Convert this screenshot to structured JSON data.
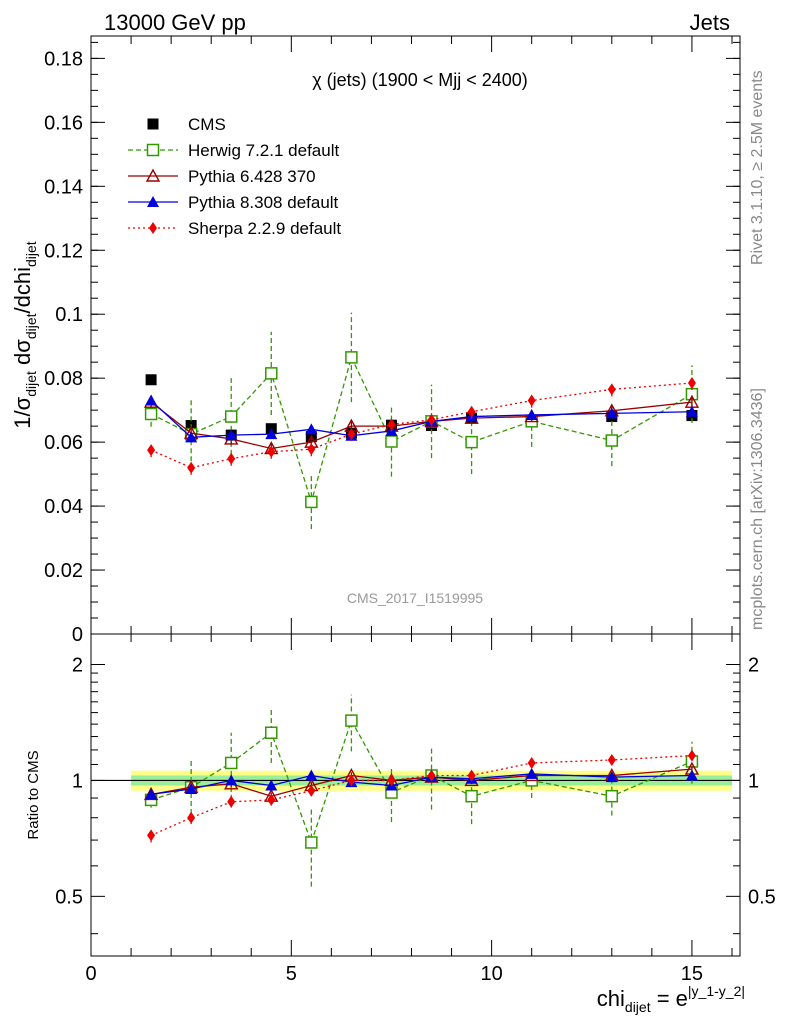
{
  "header": {
    "left": "13000 GeV pp",
    "right": "Jets"
  },
  "side_text": {
    "rivet": "Rivet 3.1.10, ≥ 2.5M events",
    "mcplots": "mcplots.cern.ch [arXiv:1306.3436]"
  },
  "chart_data": [
    {
      "type": "scatter",
      "title": "χ (jets) (1900 < Mjj < 2400)",
      "watermark": "CMS_2017_I1519995",
      "ylabel_parts": [
        "1/σ",
        "dijet",
        " dσ",
        "dijet",
        "/dchi",
        "dijet"
      ],
      "xlim": [
        0,
        16.2
      ],
      "ylim": [
        0,
        0.187
      ],
      "yticks": [
        0,
        0.02,
        0.04,
        0.06,
        0.08,
        0.1,
        0.12,
        0.14,
        0.16,
        0.18
      ],
      "ytick_labels": [
        "0",
        "0.02",
        "0.04",
        "0.06",
        "0.08",
        "0.1",
        "0.12",
        "0.14",
        "0.16",
        "0.18"
      ],
      "x": [
        1.5,
        2.5,
        3.5,
        4.5,
        5.5,
        6.5,
        7.5,
        8.5,
        9.5,
        11,
        13,
        15
      ],
      "series": [
        {
          "name": "CMS",
          "color": "#000000",
          "marker": "square",
          "line": "none",
          "values": [
            0.0795,
            0.0652,
            0.0622,
            0.0642,
            0.0617,
            0.0628,
            0.0653,
            0.0652,
            0.0675,
            0.0663,
            0.068,
            0.0683
          ]
        },
        {
          "name": "Herwig 7.2.1 default",
          "color": "#339900",
          "marker": "open-square",
          "line": "dashed",
          "values": [
            0.0688,
            0.0625,
            0.068,
            0.0815,
            0.0413,
            0.0865,
            0.0602,
            0.0665,
            0.06,
            0.0665,
            0.0605,
            0.075
          ],
          "errors": [
            0.004,
            0.011,
            0.012,
            0.013,
            0.0085,
            0.014,
            0.011,
            0.0115,
            0.01,
            0.008,
            0.008,
            0.009
          ]
        },
        {
          "name": "Pythia 6.428 370",
          "color": "#990000",
          "marker": "open-triangle",
          "line": "solid",
          "values": [
            0.0725,
            0.0628,
            0.061,
            0.058,
            0.06,
            0.065,
            0.065,
            0.0665,
            0.0675,
            0.068,
            0.0698,
            0.0725
          ],
          "errors": [
            0.0015,
            0.0015,
            0.0015,
            0.0015,
            0.0015,
            0.0015,
            0.0015,
            0.0015,
            0.0015,
            0.0015,
            0.0015,
            0.0015
          ]
        },
        {
          "name": "Pythia 8.308 default",
          "color": "#0000dd",
          "marker": "triangle",
          "line": "solid",
          "values": [
            0.073,
            0.0615,
            0.0622,
            0.0625,
            0.064,
            0.062,
            0.0635,
            0.0665,
            0.068,
            0.0685,
            0.069,
            0.0695
          ],
          "errors": [
            0.0012,
            0.0012,
            0.0012,
            0.0012,
            0.0012,
            0.0012,
            0.0012,
            0.0012,
            0.0012,
            0.0012,
            0.0012,
            0.0012
          ]
        },
        {
          "name": "Sherpa 2.2.9 default",
          "color": "#ee0000",
          "marker": "diamond",
          "line": "dotted",
          "values": [
            0.0575,
            0.052,
            0.0548,
            0.057,
            0.0578,
            0.0625,
            0.0655,
            0.067,
            0.0695,
            0.073,
            0.0765,
            0.0785
          ],
          "errors": [
            0.0022,
            0.0022,
            0.0022,
            0.0022,
            0.0022,
            0.0022,
            0.0022,
            0.0022,
            0.0022,
            0.0022,
            0.0022,
            0.0022
          ]
        }
      ]
    },
    {
      "type": "scatter",
      "ylabel": "Ratio to CMS",
      "xlabel_parts": [
        "chi",
        "dijet",
        " = e",
        "|y_1-y_2|"
      ],
      "xlim": [
        0,
        16.2
      ],
      "ylim": [
        0.35,
        2.4
      ],
      "yscale": "log",
      "yticks": [
        0.5,
        1,
        2
      ],
      "ytick_labels": [
        "0.5",
        "1",
        "2"
      ],
      "xticks": [
        0,
        5,
        10,
        15
      ],
      "xtick_labels": [
        "0",
        "5",
        "10",
        "15"
      ],
      "band": {
        "x": [
          1,
          16
        ],
        "inner": [
          0.97,
          1.03
        ],
        "outer": [
          0.94,
          1.06
        ]
      },
      "x": [
        1.5,
        2.5,
        3.5,
        4.5,
        5.5,
        6.5,
        7.5,
        8.5,
        9.5,
        11,
        13,
        15
      ],
      "series": [
        {
          "name": "Herwig 7.2.1 default",
          "color": "#339900",
          "marker": "open-square",
          "line": "dashed",
          "values": [
            0.89,
            0.96,
            1.11,
            1.33,
            0.69,
            1.43,
            0.93,
            1.03,
            0.91,
            1.0,
            0.91,
            1.12
          ],
          "errors": [
            0.04,
            0.18,
            0.22,
            0.22,
            0.16,
            0.24,
            0.15,
            0.19,
            0.14,
            0.1,
            0.1,
            0.14
          ]
        },
        {
          "name": "Pythia 6.428 370",
          "color": "#990000",
          "marker": "open-triangle",
          "line": "solid",
          "values": [
            0.92,
            0.96,
            0.98,
            0.91,
            0.97,
            1.03,
            1.0,
            1.02,
            1.0,
            1.03,
            1.03,
            1.07
          ],
          "errors": [
            0.02,
            0.02,
            0.02,
            0.02,
            0.02,
            0.02,
            0.02,
            0.02,
            0.02,
            0.02,
            0.02,
            0.02
          ]
        },
        {
          "name": "Pythia 8.308 default",
          "color": "#0000dd",
          "marker": "triangle",
          "line": "solid",
          "values": [
            0.92,
            0.95,
            1.0,
            0.97,
            1.03,
            0.99,
            0.97,
            1.02,
            1.01,
            1.04,
            1.02,
            1.03
          ],
          "errors": [
            0.015,
            0.015,
            0.015,
            0.015,
            0.015,
            0.015,
            0.015,
            0.015,
            0.015,
            0.015,
            0.015,
            0.015
          ]
        },
        {
          "name": "Sherpa 2.2.9 default",
          "color": "#ee0000",
          "marker": "diamond",
          "line": "dotted",
          "values": [
            0.72,
            0.8,
            0.88,
            0.89,
            0.94,
            1.0,
            1.0,
            1.03,
            1.03,
            1.11,
            1.13,
            1.16
          ],
          "errors": [
            0.03,
            0.03,
            0.03,
            0.03,
            0.03,
            0.03,
            0.03,
            0.03,
            0.03,
            0.03,
            0.03,
            0.03
          ]
        }
      ]
    }
  ]
}
